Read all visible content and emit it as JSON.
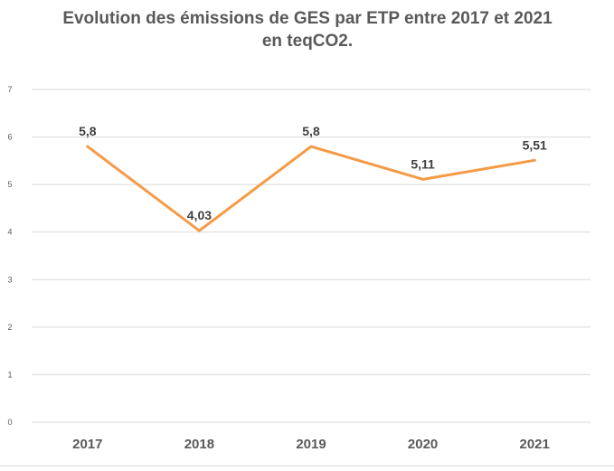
{
  "chart_data": {
    "type": "line",
    "title": "Evolution des émissions de GES par ETP entre 2017 et 2021 en teqCO2.",
    "xlabel": "",
    "ylabel": "",
    "categories": [
      "2017",
      "2018",
      "2019",
      "2020",
      "2021"
    ],
    "series": [
      {
        "values": [
          5.8,
          4.03,
          5.8,
          5.11,
          5.51
        ],
        "labels": [
          "5,8",
          "4,03",
          "5,8",
          "5,11",
          "5,51"
        ],
        "color": "#f59a45"
      }
    ],
    "ylim": [
      0,
      7
    ],
    "yticks": [
      "0",
      "1",
      "2",
      "3",
      "4",
      "5",
      "6",
      "7"
    ],
    "grid": true,
    "legend": "none",
    "gridline_color": "#d9d9d9",
    "title_color": "#595959",
    "tick_color": "#595959"
  }
}
